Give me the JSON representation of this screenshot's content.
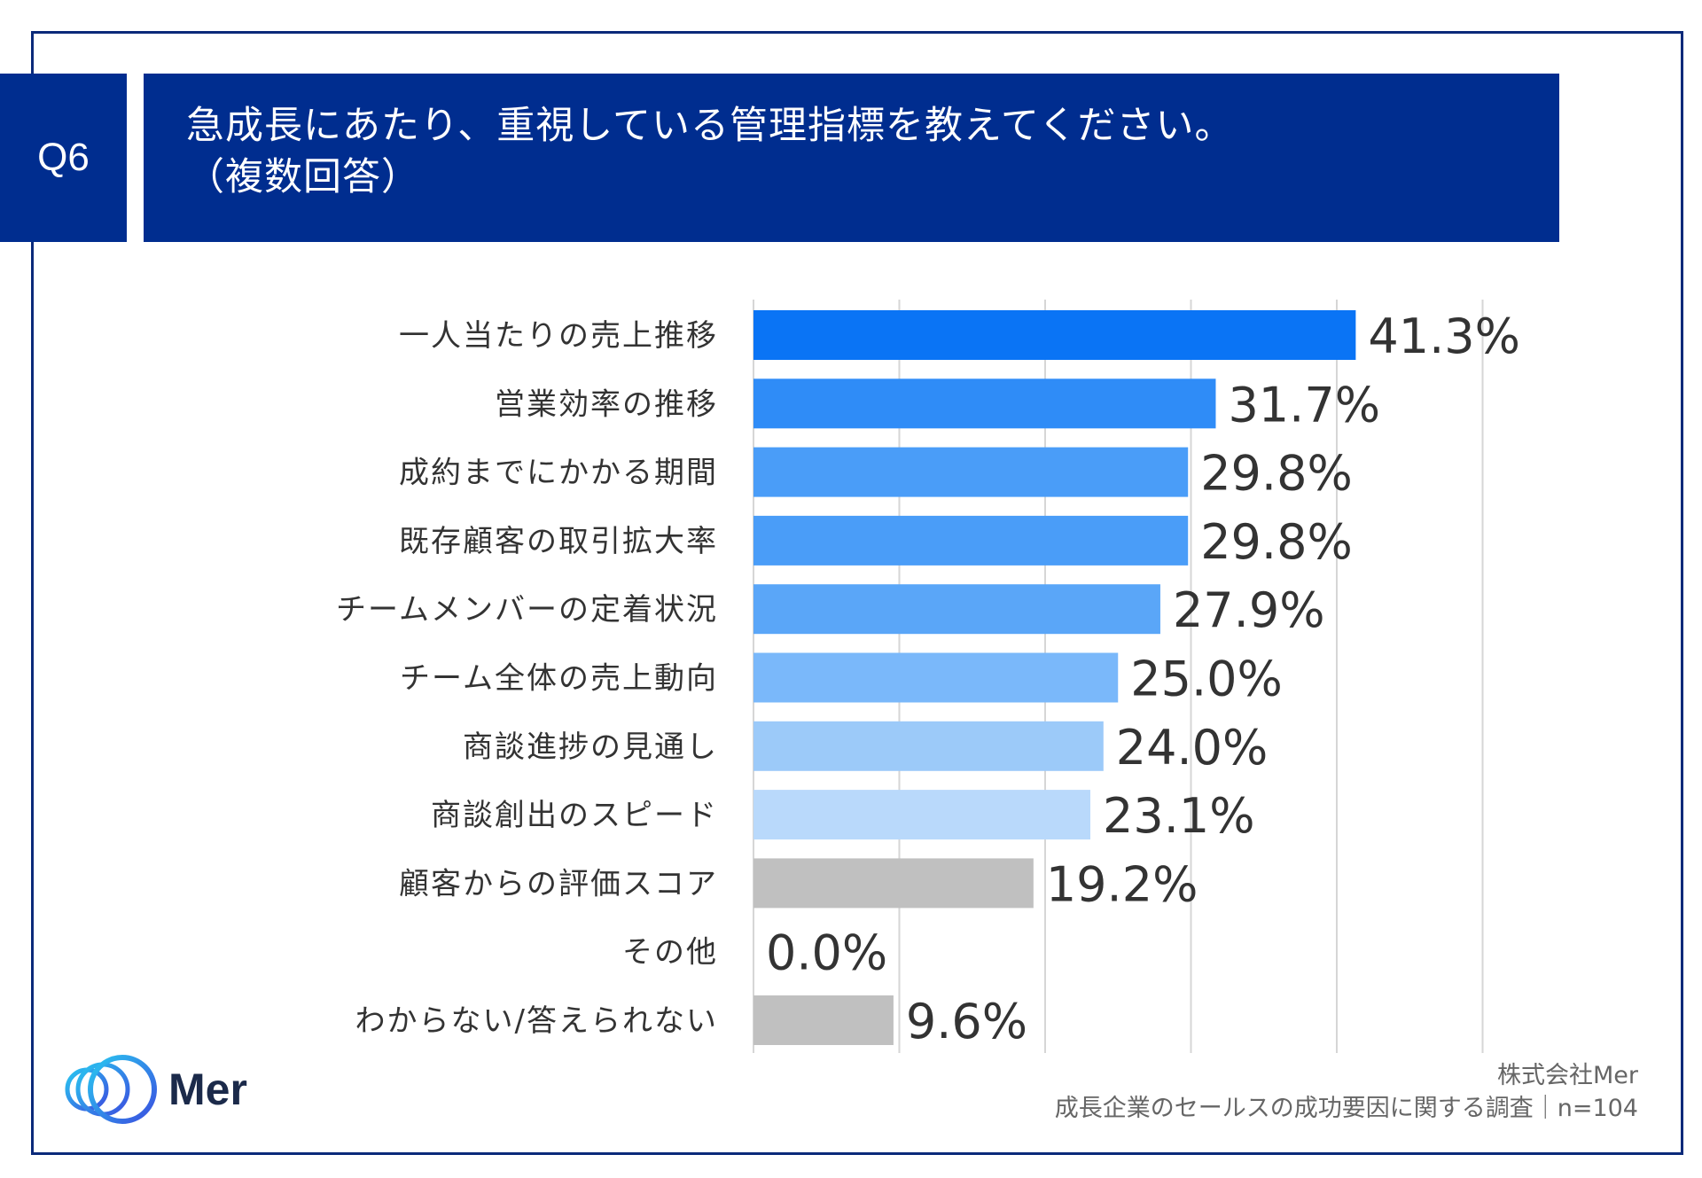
{
  "header": {
    "question_number": "Q6",
    "title_line1": "急成長にあたり、重視している管理指標を教えてください。",
    "title_line2": "（複数回答）"
  },
  "chart_data": {
    "type": "bar",
    "orientation": "horizontal",
    "categories": [
      "一人当たりの売上推移",
      "営業効率の推移",
      "成約までにかかる期間",
      "既存顧客の取引拡大率",
      "チームメンバーの定着状況",
      "チーム全体の売上動向",
      "商談進捗の見通し",
      "商談創出のスピード",
      "顧客からの評価スコア",
      "その他",
      "わからない/答えられない"
    ],
    "values": [
      41.3,
      31.7,
      29.8,
      29.8,
      27.9,
      25.0,
      24.0,
      23.1,
      19.2,
      0.0,
      9.6
    ],
    "value_labels": [
      "41.3%",
      "31.7%",
      "29.8%",
      "29.8%",
      "27.9%",
      "25.0%",
      "24.0%",
      "23.1%",
      "19.2%",
      "0.0%",
      "9.6%"
    ],
    "colors": [
      "#0a74f5",
      "#2f8cf7",
      "#4a9df8",
      "#4a9df8",
      "#5aa6f8",
      "#7ab8fa",
      "#9ccaf9",
      "#b9d9fb",
      "#c0c0c0",
      "#c0c0c0",
      "#c0c0c0"
    ],
    "xlim": [
      0,
      50
    ],
    "grid": true
  },
  "logo": {
    "text": "Mer"
  },
  "source": {
    "company": "株式会社Mer",
    "survey": "成長企業のセールスの成功要因に関する調査｜n=104"
  }
}
